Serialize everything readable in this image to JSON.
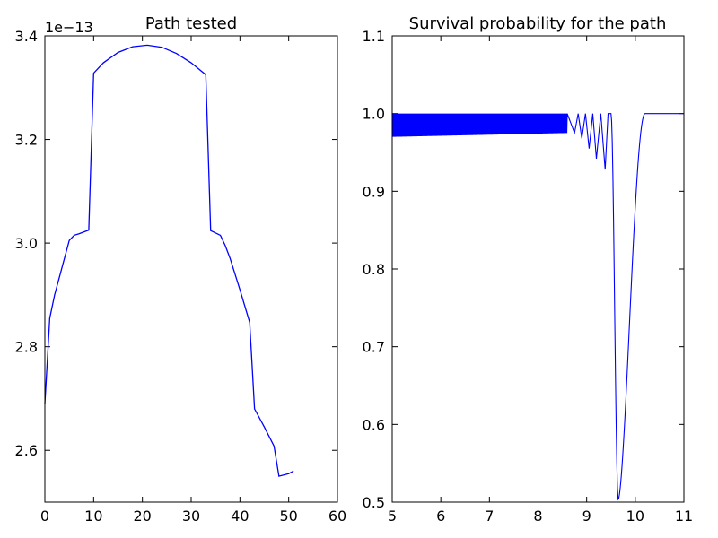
{
  "colors": {
    "series": "#0000ff",
    "axes": "#000000",
    "background": "#ffffff"
  },
  "chart_data": [
    {
      "type": "line",
      "title": "Path tested",
      "xlabel": "",
      "ylabel": "",
      "xlim": [
        0,
        60
      ],
      "ylim": [
        2.5,
        3.4
      ],
      "xticks": [
        0,
        10,
        20,
        30,
        40,
        50,
        60
      ],
      "xtick_labels": [
        "0",
        "10",
        "20",
        "30",
        "40",
        "50",
        "60"
      ],
      "yticks": [
        2.6,
        2.8,
        3.0,
        3.2,
        3.4
      ],
      "ytick_labels": [
        "2.6",
        "2.8",
        "3.0",
        "3.2",
        "3.4"
      ],
      "y_offset_label": "1e−13",
      "grid": false,
      "series": [
        {
          "x": [
            0,
            1,
            2,
            3,
            4,
            5,
            6,
            7,
            9,
            10,
            12,
            15,
            18,
            21,
            24,
            27,
            30,
            33,
            34,
            36,
            37,
            38,
            40,
            42,
            43,
            45,
            47,
            48,
            50,
            51
          ],
          "y": [
            2.69,
            2.855,
            2.9,
            2.935,
            2.97,
            3.005,
            3.015,
            3.018,
            3.025,
            3.328,
            3.348,
            3.368,
            3.379,
            3.382,
            3.378,
            3.366,
            3.348,
            3.325,
            3.024,
            3.015,
            2.995,
            2.97,
            2.91,
            2.847,
            2.68,
            2.645,
            2.608,
            2.55,
            2.555,
            2.56
          ]
        }
      ]
    },
    {
      "type": "line",
      "title": "Survival probability for the path",
      "xlabel": "",
      "ylabel": "",
      "xlim": [
        5,
        11
      ],
      "ylim": [
        0.5,
        1.1
      ],
      "xticks": [
        5,
        6,
        7,
        8,
        9,
        10,
        11
      ],
      "xtick_labels": [
        "5",
        "6",
        "7",
        "8",
        "9",
        "10",
        "11"
      ],
      "yticks": [
        0.5,
        0.6,
        0.7,
        0.8,
        0.9,
        1.0,
        1.1
      ],
      "ytick_labels": [
        "0.5",
        "0.6",
        "0.7",
        "0.8",
        "0.9",
        "1.0",
        "1.1"
      ],
      "grid": false,
      "series": [
        {
          "description_of_shape": {
            "oscillation_upper": 1.0,
            "oscillation_lower_start": 0.97,
            "oscillation_region_x": [
              5,
              9.5
            ],
            "last_oscillation_minima": [
              [
                8.75,
                0.975
              ],
              [
                8.9,
                0.968
              ],
              [
                9.05,
                0.955
              ],
              [
                9.2,
                0.942
              ],
              [
                9.38,
                0.928
              ]
            ],
            "dip_min": [
              9.65,
              0.503
            ],
            "recovered_x": 10.2,
            "final_value": 1.0
          }
        }
      ]
    }
  ]
}
